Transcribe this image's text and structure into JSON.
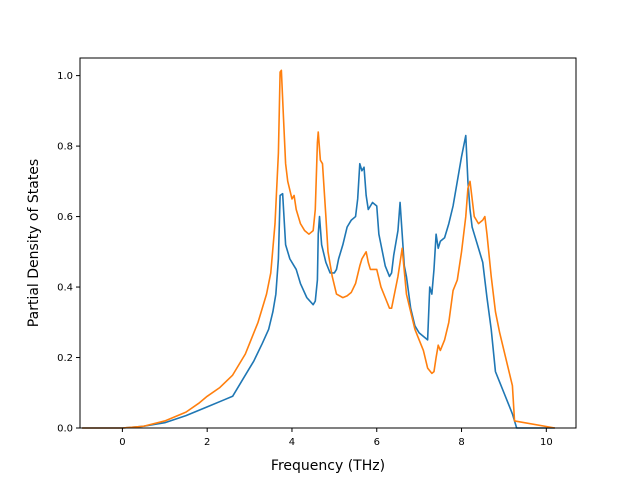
{
  "chart_data": {
    "type": "line",
    "title": "",
    "xlabel": "Frequency (THz)",
    "ylabel": "Partial Density of States",
    "xlim": [
      -1.0,
      10.7
    ],
    "ylim": [
      0.0,
      1.05
    ],
    "xticks": [
      0,
      2,
      4,
      6,
      8,
      10
    ],
    "yticks": [
      0.0,
      0.2,
      0.4,
      0.6,
      0.8,
      1.0
    ],
    "xtick_labels": [
      "0",
      "2",
      "4",
      "6",
      "8",
      "10"
    ],
    "ytick_labels": [
      "0.0",
      "0.2",
      "0.4",
      "0.6",
      "0.8",
      "1.0"
    ],
    "grid": false,
    "legend": "none",
    "series": [
      {
        "color": "#1f77b4",
        "x": [
          -0.95,
          0.0,
          0.5,
          1.0,
          1.5,
          2.0,
          2.4,
          2.6,
          2.8,
          3.0,
          3.1,
          3.3,
          3.45,
          3.55,
          3.62,
          3.68,
          3.72,
          3.78,
          3.85,
          3.95,
          4.05,
          4.1,
          4.2,
          4.35,
          4.5,
          4.55,
          4.6,
          4.62,
          4.65,
          4.7,
          4.8,
          4.9,
          5.0,
          5.05,
          5.1,
          5.2,
          5.3,
          5.4,
          5.5,
          5.55,
          5.6,
          5.65,
          5.7,
          5.75,
          5.8,
          5.9,
          6.0,
          6.05,
          6.1,
          6.2,
          6.3,
          6.35,
          6.4,
          6.5,
          6.55,
          6.6,
          6.65,
          6.7,
          6.8,
          6.9,
          7.0,
          7.2,
          7.25,
          7.3,
          7.35,
          7.4,
          7.45,
          7.5,
          7.6,
          7.7,
          7.8,
          7.9,
          8.0,
          8.1,
          8.15,
          8.2,
          8.25,
          8.3,
          8.4,
          8.5,
          8.55,
          8.6,
          8.7,
          8.8,
          8.9,
          9.0,
          9.1,
          9.2,
          9.25,
          9.3,
          10.2
        ],
        "y": [
          0.0,
          0.0,
          0.005,
          0.015,
          0.035,
          0.06,
          0.08,
          0.09,
          0.13,
          0.17,
          0.19,
          0.24,
          0.28,
          0.33,
          0.38,
          0.48,
          0.66,
          0.665,
          0.52,
          0.48,
          0.46,
          0.45,
          0.41,
          0.37,
          0.35,
          0.36,
          0.42,
          0.55,
          0.6,
          0.52,
          0.47,
          0.44,
          0.44,
          0.45,
          0.48,
          0.52,
          0.57,
          0.59,
          0.6,
          0.65,
          0.75,
          0.73,
          0.74,
          0.66,
          0.62,
          0.64,
          0.63,
          0.55,
          0.52,
          0.46,
          0.43,
          0.44,
          0.49,
          0.56,
          0.64,
          0.55,
          0.46,
          0.43,
          0.34,
          0.29,
          0.27,
          0.25,
          0.4,
          0.38,
          0.45,
          0.55,
          0.51,
          0.53,
          0.54,
          0.58,
          0.63,
          0.7,
          0.77,
          0.83,
          0.7,
          0.62,
          0.57,
          0.55,
          0.51,
          0.47,
          0.42,
          0.37,
          0.28,
          0.16,
          0.13,
          0.1,
          0.07,
          0.04,
          0.02,
          0.0,
          0.0
        ]
      },
      {
        "color": "#ff7f0e",
        "x": [
          -0.95,
          0.0,
          0.5,
          1.0,
          1.5,
          1.8,
          2.0,
          2.3,
          2.6,
          2.9,
          3.0,
          3.2,
          3.4,
          3.5,
          3.6,
          3.68,
          3.72,
          3.75,
          3.8,
          3.85,
          3.9,
          4.0,
          4.05,
          4.1,
          4.15,
          4.2,
          4.3,
          4.4,
          4.5,
          4.55,
          4.6,
          4.62,
          4.67,
          4.72,
          4.8,
          4.85,
          4.95,
          5.05,
          5.2,
          5.3,
          5.4,
          5.5,
          5.6,
          5.65,
          5.7,
          5.75,
          5.8,
          5.85,
          5.9,
          6.0,
          6.1,
          6.2,
          6.3,
          6.35,
          6.4,
          6.5,
          6.55,
          6.6,
          6.7,
          6.8,
          6.9,
          7.0,
          7.1,
          7.2,
          7.3,
          7.35,
          7.4,
          7.45,
          7.5,
          7.6,
          7.7,
          7.8,
          7.9,
          8.0,
          8.1,
          8.15,
          8.2,
          8.3,
          8.4,
          8.5,
          8.55,
          8.6,
          8.7,
          8.8,
          8.9,
          9.0,
          9.1,
          9.2,
          9.25,
          10.2
        ],
        "y": [
          0.0,
          0.0,
          0.005,
          0.02,
          0.045,
          0.07,
          0.09,
          0.115,
          0.15,
          0.21,
          0.24,
          0.3,
          0.38,
          0.44,
          0.58,
          0.78,
          1.01,
          1.015,
          0.88,
          0.75,
          0.7,
          0.65,
          0.66,
          0.62,
          0.6,
          0.58,
          0.56,
          0.55,
          0.56,
          0.62,
          0.81,
          0.84,
          0.76,
          0.75,
          0.6,
          0.5,
          0.43,
          0.38,
          0.37,
          0.375,
          0.385,
          0.41,
          0.46,
          0.48,
          0.49,
          0.5,
          0.47,
          0.45,
          0.45,
          0.45,
          0.4,
          0.37,
          0.34,
          0.34,
          0.37,
          0.43,
          0.47,
          0.51,
          0.38,
          0.33,
          0.28,
          0.25,
          0.22,
          0.17,
          0.155,
          0.16,
          0.2,
          0.235,
          0.22,
          0.25,
          0.3,
          0.39,
          0.42,
          0.5,
          0.6,
          0.68,
          0.7,
          0.6,
          0.58,
          0.59,
          0.6,
          0.55,
          0.43,
          0.33,
          0.27,
          0.22,
          0.17,
          0.12,
          0.02,
          0.0
        ]
      }
    ]
  }
}
